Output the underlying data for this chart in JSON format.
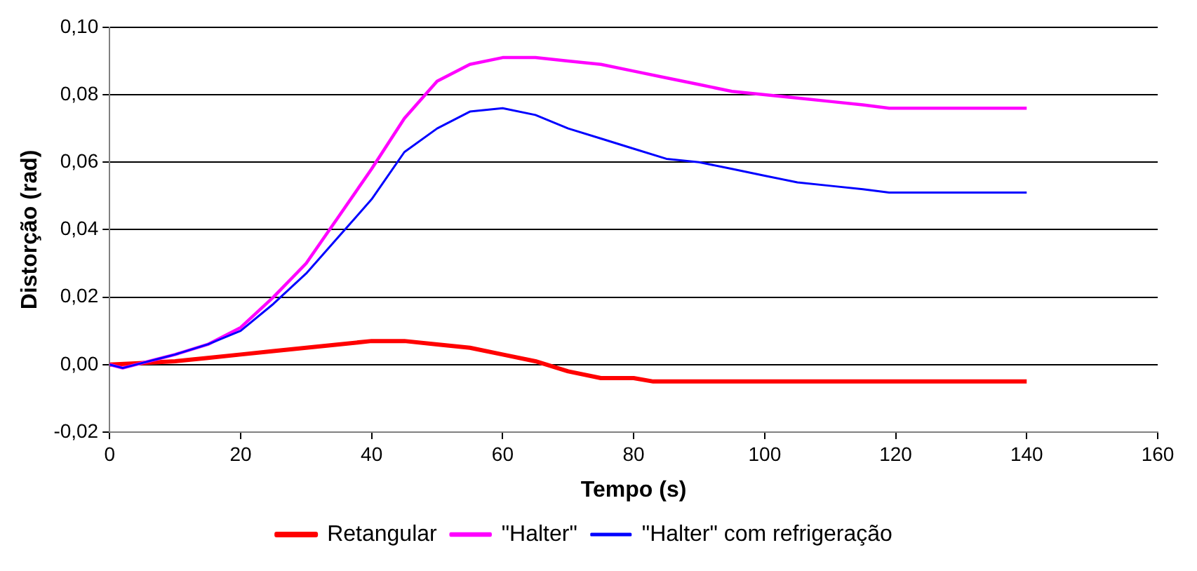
{
  "chart_data": {
    "type": "line",
    "xlabel": "Tempo (s)",
    "ylabel": "Distorção (rad)",
    "xlim": [
      0,
      160
    ],
    "xticks": [
      0,
      20,
      40,
      60,
      80,
      100,
      120,
      140,
      160
    ],
    "ylim": [
      -0.02,
      0.1
    ],
    "yticks": [
      {
        "value": -0.02,
        "label": "-0,02"
      },
      {
        "value": 0,
        "label": "0,00"
      },
      {
        "value": 0.02,
        "label": "0,02"
      },
      {
        "value": 0.04,
        "label": "0,04"
      },
      {
        "value": 0.06,
        "label": "0,06"
      },
      {
        "value": 0.08,
        "label": "0,08"
      },
      {
        "value": 0.1,
        "label": "0,10"
      }
    ],
    "grid": "y",
    "legend": "bottom",
    "marker": "none",
    "line_style": "solid",
    "series": [
      {
        "name": "Retangular",
        "color": "#ff0000",
        "x": [
          0,
          5,
          10,
          15,
          20,
          25,
          30,
          35,
          40,
          45,
          50,
          55,
          60,
          65,
          70,
          75,
          80,
          83,
          140
        ],
        "values": [
          0,
          0.0005,
          0.001,
          0.002,
          0.003,
          0.004,
          0.005,
          0.006,
          0.007,
          0.007,
          0.006,
          0.005,
          0.003,
          0.001,
          -0.002,
          -0.004,
          -0.004,
          -0.005,
          -0.005
        ]
      },
      {
        "name": "\"Halter\"",
        "color": "#ff00ff",
        "x": [
          0,
          2,
          5,
          10,
          15,
          20,
          25,
          30,
          35,
          40,
          45,
          50,
          55,
          60,
          65,
          70,
          75,
          80,
          85,
          90,
          95,
          100,
          105,
          110,
          115,
          119,
          140
        ],
        "values": [
          0,
          -0.001,
          0.0005,
          0.003,
          0.006,
          0.011,
          0.02,
          0.03,
          0.044,
          0.058,
          0.073,
          0.084,
          0.089,
          0.091,
          0.091,
          0.09,
          0.089,
          0.087,
          0.085,
          0.083,
          0.081,
          0.08,
          0.079,
          0.078,
          0.077,
          0.076,
          0.076
        ]
      },
      {
        "name": "\"Halter\" com refrigeração",
        "color": "#0000ff",
        "x": [
          0,
          2,
          5,
          10,
          15,
          20,
          25,
          30,
          35,
          40,
          45,
          50,
          55,
          60,
          65,
          70,
          75,
          80,
          85,
          90,
          95,
          100,
          105,
          110,
          115,
          119,
          140
        ],
        "values": [
          0,
          -0.001,
          0.0005,
          0.003,
          0.006,
          0.01,
          0.018,
          0.027,
          0.038,
          0.049,
          0.063,
          0.07,
          0.075,
          0.076,
          0.074,
          0.07,
          0.067,
          0.064,
          0.061,
          0.06,
          0.058,
          0.056,
          0.054,
          0.053,
          0.052,
          0.051,
          0.051
        ]
      }
    ]
  }
}
